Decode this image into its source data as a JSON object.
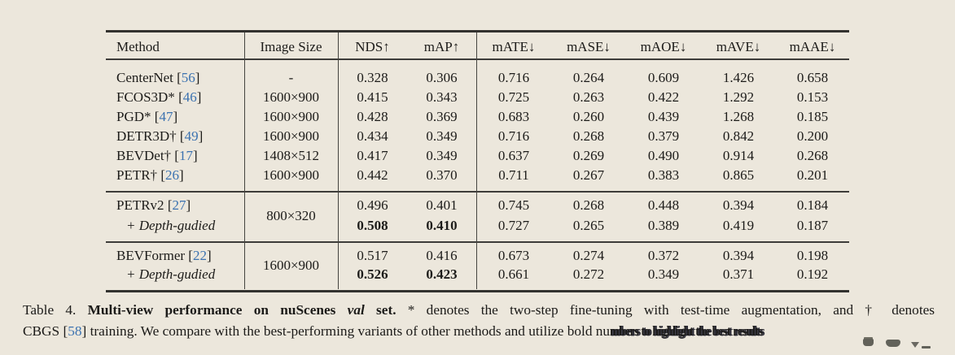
{
  "page": {
    "background": "#ece7dc"
  },
  "colors": {
    "accent_blue": "#3b72b0",
    "text": "#1c1b19",
    "rule": "#33322f"
  },
  "table": {
    "columns": [
      "Method",
      "Image Size",
      "NDS↑",
      "mAP↑",
      "mATE↓",
      "mASE↓",
      "mAOE↓",
      "mAVE↓",
      "mAAE↓"
    ],
    "groups": [
      {
        "shared_image_size": null,
        "rows": [
          {
            "method": "CenterNet",
            "cite": "56",
            "italic": false,
            "image_size": "-",
            "values": [
              "0.328",
              "0.306",
              "0.716",
              "0.264",
              "0.609",
              "1.426",
              "0.658"
            ],
            "bold": []
          },
          {
            "method": "FCOS3D*",
            "cite": "46",
            "italic": false,
            "image_size": "1600×900",
            "values": [
              "0.415",
              "0.343",
              "0.725",
              "0.263",
              "0.422",
              "1.292",
              "0.153"
            ],
            "bold": []
          },
          {
            "method": "PGD*",
            "cite": "47",
            "italic": false,
            "image_size": "1600×900",
            "values": [
              "0.428",
              "0.369",
              "0.683",
              "0.260",
              "0.439",
              "1.268",
              "0.185"
            ],
            "bold": []
          },
          {
            "method": "DETR3D†",
            "cite": "49",
            "italic": false,
            "image_size": "1600×900",
            "values": [
              "0.434",
              "0.349",
              "0.716",
              "0.268",
              "0.379",
              "0.842",
              "0.200"
            ],
            "bold": []
          },
          {
            "method": "BEVDet†",
            "cite": "17",
            "italic": false,
            "image_size": "1408×512",
            "values": [
              "0.417",
              "0.349",
              "0.637",
              "0.269",
              "0.490",
              "0.914",
              "0.268"
            ],
            "bold": []
          },
          {
            "method": "PETR†",
            "cite": "26",
            "italic": false,
            "image_size": "1600×900",
            "values": [
              "0.442",
              "0.370",
              "0.711",
              "0.267",
              "0.383",
              "0.865",
              "0.201"
            ],
            "bold": []
          }
        ]
      },
      {
        "shared_image_size": "800×320",
        "rows": [
          {
            "method": "PETRv2",
            "cite": "27",
            "italic": false,
            "image_size": null,
            "values": [
              "0.496",
              "0.401",
              "0.745",
              "0.268",
              "0.448",
              "0.394",
              "0.184"
            ],
            "bold": []
          },
          {
            "method": "+ Depth-gudied",
            "cite": null,
            "italic": true,
            "image_size": null,
            "values": [
              "0.508",
              "0.410",
              "0.727",
              "0.265",
              "0.389",
              "0.419",
              "0.187"
            ],
            "bold": [
              0,
              1
            ]
          }
        ]
      },
      {
        "shared_image_size": "1600×900",
        "rows": [
          {
            "method": "BEVFormer",
            "cite": "22",
            "italic": false,
            "image_size": null,
            "values": [
              "0.517",
              "0.416",
              "0.673",
              "0.274",
              "0.372",
              "0.394",
              "0.198"
            ],
            "bold": []
          },
          {
            "method": "+ Depth-gudied",
            "cite": null,
            "italic": true,
            "image_size": null,
            "values": [
              "0.526",
              "0.423",
              "0.661",
              "0.272",
              "0.349",
              "0.371",
              "0.192"
            ],
            "bold": [
              0,
              1
            ]
          }
        ]
      }
    ]
  },
  "caption": {
    "label": "Table 4. ",
    "title_bold": "Multi-view performance on nuScenes ",
    "title_italic_word": "val",
    "title_bold_end": " set. ",
    "line1_rest": " * denotes the two-step fine-tuning with test-time augmentation, and † denotes",
    "line2_pre": "CBGS [",
    "line2_cite": "58",
    "line2_mid": "] training. We compare with the best-performing variants of other methods and utilize bold nu",
    "garbled_text": "mbers to highlight the best results"
  },
  "overlay_icons": [
    {
      "name": "player-control-blob-1"
    },
    {
      "name": "player-control-blob-2"
    },
    {
      "name": "player-control-triangle-down"
    },
    {
      "name": "player-control-dash"
    }
  ]
}
